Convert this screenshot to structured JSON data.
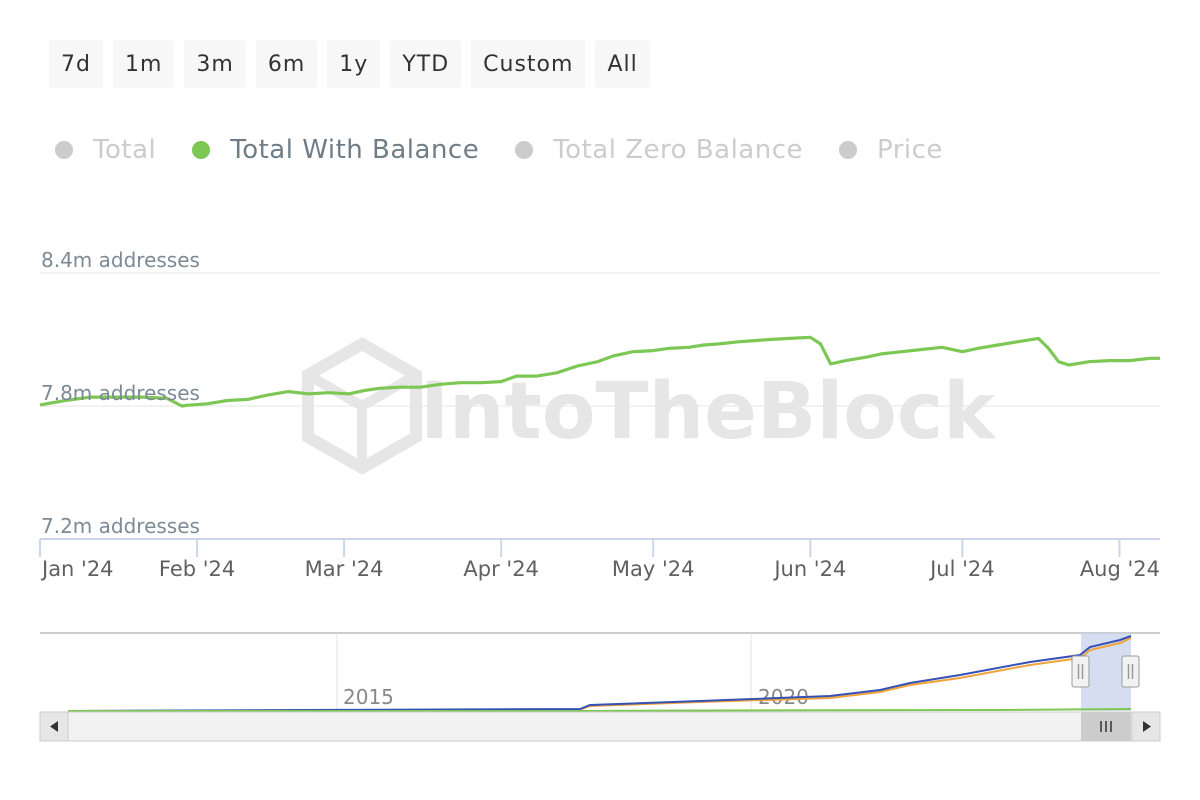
{
  "range_buttons": [
    "7d",
    "1m",
    "3m",
    "6m",
    "1y",
    "YTD",
    "Custom",
    "All"
  ],
  "legend": [
    {
      "label": "Total",
      "color": "#cccccc",
      "active": false
    },
    {
      "label": "Total With Balance",
      "color": "#7dc855",
      "active": true
    },
    {
      "label": "Total Zero Balance",
      "color": "#cccccc",
      "active": false
    },
    {
      "label": "Price",
      "color": "#cccccc",
      "active": false
    }
  ],
  "colors": {
    "series": "#7dc855",
    "legend_active_text": "#6f7d87",
    "legend_inactive_text": "#cccccc",
    "grid": "#e6e6e6",
    "navigator_blue": "#3551b5",
    "navigator_orange": "#f0a33a",
    "navigator_green": "#7dc855",
    "navigator_mask": "#c7d3ec"
  },
  "watermark": "IntoTheBlock",
  "chart_data": {
    "type": "line",
    "title": "",
    "ylabel": "",
    "y_ticks": [
      {
        "value": 8.4,
        "label": "8.4m addresses"
      },
      {
        "value": 7.8,
        "label": "7.8m addresses"
      },
      {
        "value": 7.2,
        "label": "7.2m addresses"
      }
    ],
    "ylim": [
      7.2,
      8.4
    ],
    "xlim": [
      0,
      221
    ],
    "x_ticks": [
      {
        "x": 0,
        "label": "Jan '24"
      },
      {
        "x": 31,
        "label": "Feb '24"
      },
      {
        "x": 60,
        "label": "Mar '24"
      },
      {
        "x": 91,
        "label": "Apr '24"
      },
      {
        "x": 121,
        "label": "May '24"
      },
      {
        "x": 152,
        "label": "Jun '24"
      },
      {
        "x": 182,
        "label": "Jul '24"
      },
      {
        "x": 213,
        "label": "Aug '24"
      }
    ],
    "series": [
      {
        "name": "Total With Balance",
        "x": [
          0,
          5,
          10,
          15,
          20,
          25,
          28,
          29,
          33,
          37,
          41,
          45,
          49,
          53,
          57,
          61,
          64,
          67,
          71,
          75,
          79,
          83,
          87,
          91,
          94,
          98,
          102,
          106,
          110,
          113,
          117,
          121,
          124,
          128,
          131,
          134,
          138,
          141,
          144,
          148,
          152,
          154,
          156,
          159,
          163,
          166,
          170,
          174,
          178,
          182,
          185,
          189,
          193,
          197,
          199,
          201,
          203,
          207,
          211,
          215,
          219,
          221
        ],
        "y": [
          7.805,
          7.825,
          7.84,
          7.84,
          7.84,
          7.835,
          7.8,
          7.803,
          7.81,
          7.825,
          7.83,
          7.85,
          7.865,
          7.855,
          7.86,
          7.855,
          7.87,
          7.88,
          7.885,
          7.885,
          7.898,
          7.905,
          7.905,
          7.91,
          7.935,
          7.935,
          7.95,
          7.98,
          8.0,
          8.025,
          8.045,
          8.05,
          8.06,
          8.065,
          8.075,
          8.08,
          8.09,
          8.095,
          8.1,
          8.105,
          8.11,
          8.08,
          7.99,
          8.005,
          8.02,
          8.035,
          8.045,
          8.055,
          8.065,
          8.045,
          8.06,
          8.075,
          8.09,
          8.105,
          8.06,
          8.0,
          7.985,
          8.0,
          8.005,
          8.005,
          8.015,
          8.015
        ]
      }
    ],
    "legend_position": "top-left",
    "grid": true,
    "navigator": {
      "x_labels": [
        "2015",
        "2020"
      ]
    }
  }
}
